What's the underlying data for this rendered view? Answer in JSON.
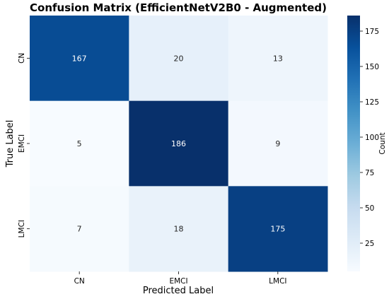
{
  "chart_data": {
    "type": "heatmap",
    "title": "Confusion Matrix (EfficientNetV2B0 - Augmented)",
    "xlabel": "Predicted Label",
    "ylabel": "True Label",
    "x_categories": [
      "CN",
      "EMCI",
      "LMCI"
    ],
    "y_categories": [
      "CN",
      "EMCI",
      "LMCI"
    ],
    "matrix": [
      [
        167,
        20,
        13
      ],
      [
        5,
        186,
        9
      ],
      [
        7,
        18,
        175
      ]
    ],
    "colormap": "Blues",
    "colorbar": {
      "label": "Count",
      "min": 5,
      "max": 186,
      "ticks": [
        25,
        50,
        75,
        100,
        125,
        150,
        175
      ]
    },
    "colors": {
      "low": "#f7fbff",
      "high": "#08306b"
    }
  }
}
